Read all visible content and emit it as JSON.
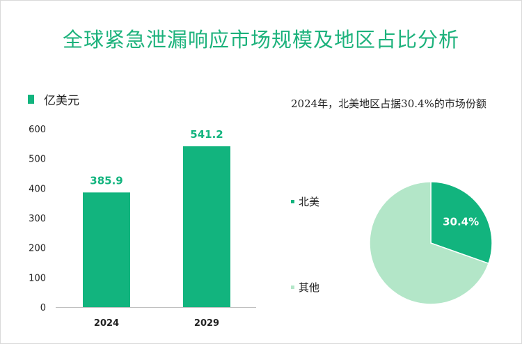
{
  "title": "全球紧急泄漏响应市场规模及地区占比分析",
  "bar_legend": "亿美元",
  "pie_caption": "2024年，北美地区占据30.4%的市场份额",
  "colors": {
    "bar": "#12b47e",
    "north_america": "#12b47e",
    "other": "#b3e6c8",
    "title": "#1db27c"
  },
  "chart_data": [
    {
      "type": "bar",
      "categories": [
        "2024",
        "2029"
      ],
      "values": [
        385.9,
        541.2
      ],
      "value_labels": [
        "385.9",
        "541.2"
      ],
      "ylim": [
        0,
        600
      ],
      "yticks": [
        0,
        100,
        200,
        300,
        400,
        500,
        600
      ],
      "ytick_labels": [
        "0",
        "100",
        "200",
        "300",
        "400",
        "500",
        "600"
      ],
      "legend": "亿美元",
      "grid": false
    },
    {
      "type": "pie",
      "labels": [
        "北美",
        "其他"
      ],
      "values": [
        30.4,
        69.6
      ],
      "slice_labels": [
        "30.4%",
        ""
      ],
      "legend_placement": "left"
    }
  ]
}
